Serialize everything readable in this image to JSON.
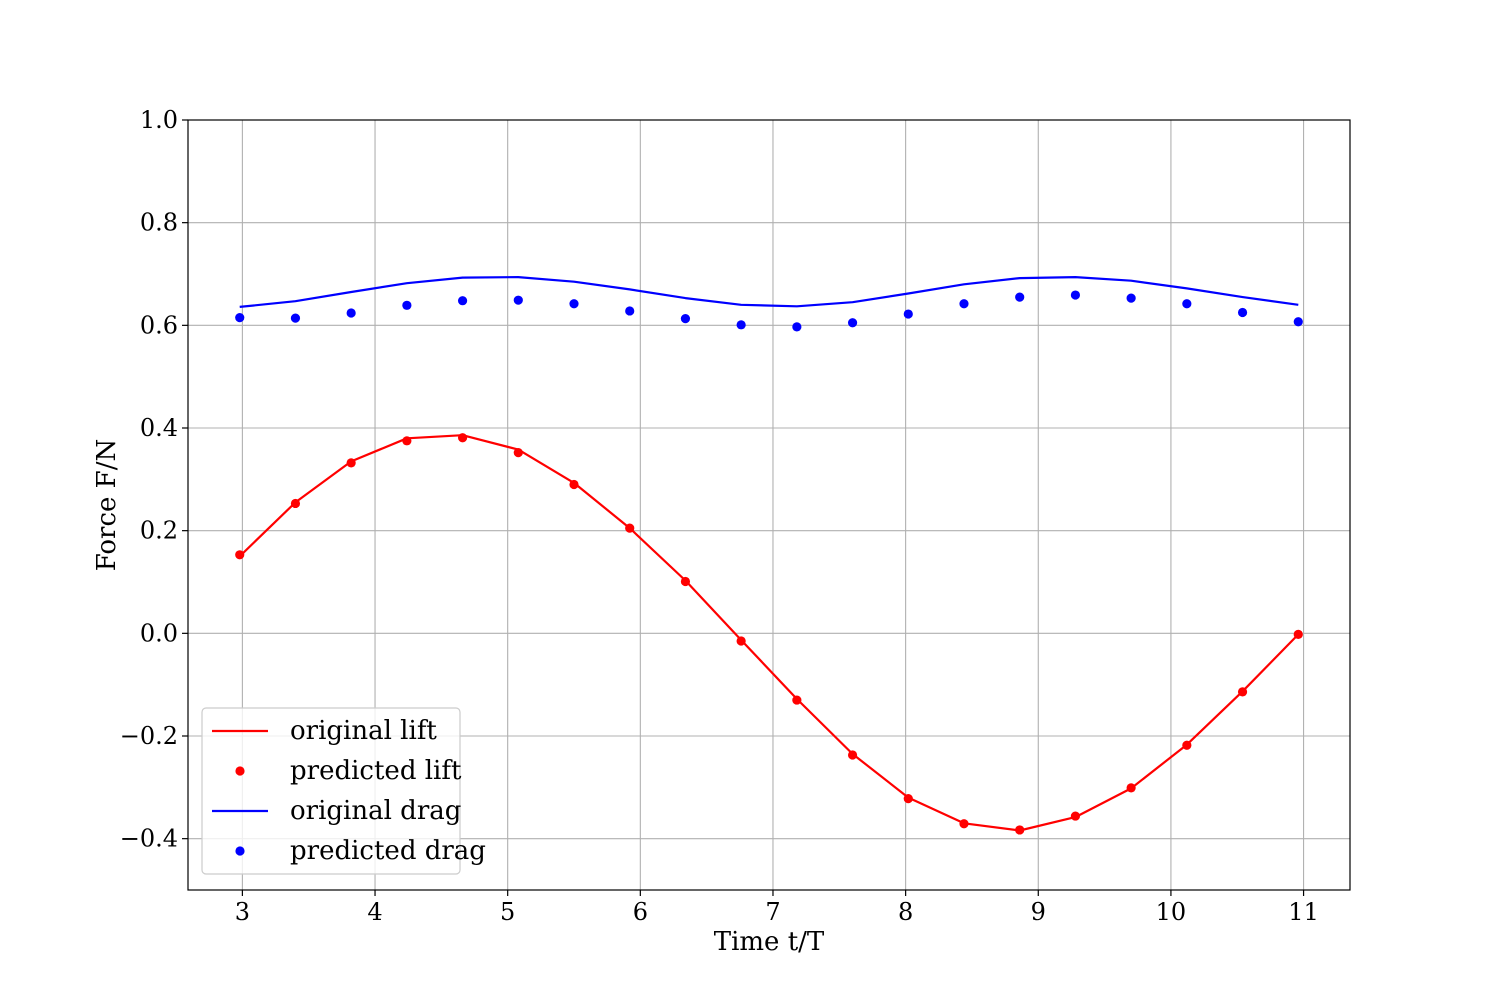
{
  "chart_data": {
    "type": "line",
    "title": "",
    "xlabel": "Time t/T",
    "ylabel": "Force F/N",
    "xlim": [
      2.59,
      11.35
    ],
    "ylim": [
      -0.5,
      1.0
    ],
    "xticks": [
      3,
      4,
      5,
      6,
      7,
      8,
      9,
      10,
      11
    ],
    "xtick_labels": [
      "3",
      "4",
      "5",
      "6",
      "7",
      "8",
      "9",
      "10",
      "11"
    ],
    "yticks": [
      -0.4,
      -0.2,
      0.0,
      0.2,
      0.4,
      0.6,
      0.8,
      1.0
    ],
    "ytick_labels": [
      "−0.4",
      "−0.2",
      "0.0",
      "0.2",
      "0.4",
      "0.6",
      "0.8",
      "1.0"
    ],
    "grid": true,
    "legend_position": "lower-left",
    "x": [
      2.98,
      3.4,
      3.82,
      4.24,
      4.66,
      5.08,
      5.5,
      5.92,
      6.34,
      6.76,
      7.18,
      7.6,
      8.02,
      8.44,
      8.86,
      9.28,
      9.7,
      10.12,
      10.54,
      10.96
    ],
    "series": [
      {
        "name": "original lift",
        "style": "line",
        "color": "#ff0000",
        "values": [
          0.15,
          0.255,
          0.335,
          0.38,
          0.386,
          0.358,
          0.293,
          0.205,
          0.103,
          -0.013,
          -0.128,
          -0.235,
          -0.32,
          -0.37,
          -0.384,
          -0.358,
          -0.302,
          -0.217,
          -0.113,
          -0.002
        ]
      },
      {
        "name": "predicted lift",
        "style": "marker",
        "color": "#ff0000",
        "values": [
          0.153,
          0.253,
          0.332,
          0.375,
          0.381,
          0.352,
          0.29,
          0.205,
          0.101,
          -0.015,
          -0.13,
          -0.237,
          -0.322,
          -0.371,
          -0.383,
          -0.356,
          -0.301,
          -0.218,
          -0.114,
          -0.002
        ]
      },
      {
        "name": "original drag",
        "style": "line",
        "color": "#0000ff",
        "values": [
          0.636,
          0.647,
          0.665,
          0.682,
          0.693,
          0.694,
          0.685,
          0.67,
          0.653,
          0.64,
          0.637,
          0.645,
          0.662,
          0.68,
          0.692,
          0.694,
          0.687,
          0.672,
          0.655,
          0.64
        ]
      },
      {
        "name": "predicted drag",
        "style": "marker",
        "color": "#0000ff",
        "values": [
          0.615,
          0.614,
          0.624,
          0.639,
          0.648,
          0.649,
          0.642,
          0.628,
          0.613,
          0.601,
          0.597,
          0.605,
          0.622,
          0.642,
          0.655,
          0.659,
          0.653,
          0.642,
          0.625,
          0.607
        ]
      }
    ]
  }
}
